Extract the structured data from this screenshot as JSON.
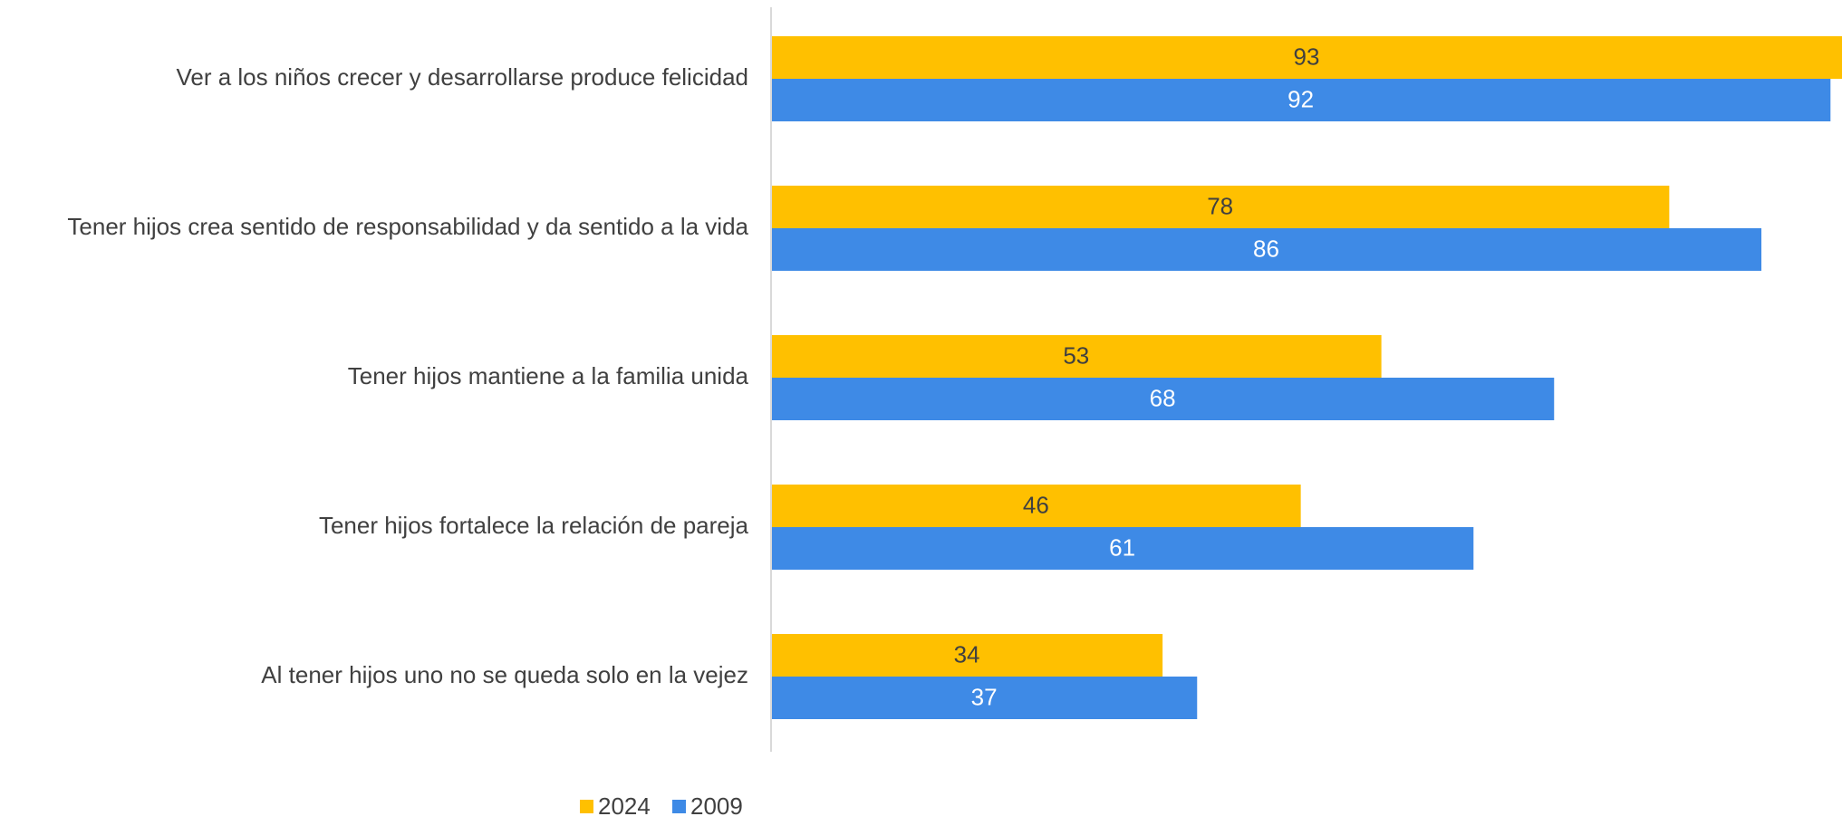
{
  "chart_data": {
    "type": "bar",
    "orientation": "horizontal",
    "categories": [
      "Ver a los niños crecer y desarrollarse produce felicidad",
      "Tener hijos crea sentido de responsabilidad y da sentido a la vida",
      "Tener hijos mantiene a la familia unida",
      "Tener hijos fortalece la relación de pareja",
      "Al tener hijos uno no se queda solo en la vejez"
    ],
    "series": [
      {
        "name": "2024",
        "color": "#FFC000",
        "label_color": "#404040",
        "values": [
          93,
          78,
          53,
          46,
          34
        ]
      },
      {
        "name": "2009",
        "color": "#3E8AE6",
        "label_color": "#FFFFFF",
        "values": [
          92,
          86,
          68,
          61,
          37
        ]
      }
    ],
    "xlim": [
      0,
      93
    ],
    "grid": false,
    "data_labels": true,
    "legend": {
      "position": "bottom"
    },
    "axis_color": "#D9D9D9"
  }
}
